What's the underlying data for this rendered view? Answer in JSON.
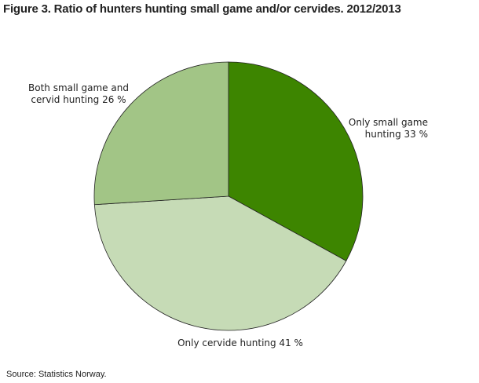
{
  "chart_data": {
    "type": "pie",
    "title": "Figure 3. Ratio of hunters hunting small game and/or cervides. 2012/2013",
    "slices": [
      {
        "label_lines": [
          "Only small game",
          "hunting 33 %"
        ],
        "value": 33,
        "color": "#3d8500"
      },
      {
        "label_lines": [
          "Only cervide hunting 41 %"
        ],
        "value": 41,
        "color": "#c6dbb6"
      },
      {
        "label_lines": [
          "Both small game and",
          "cervid hunting 26 %"
        ],
        "value": 26,
        "color": "#a2c586"
      }
    ],
    "start_angle": "top, clockwise",
    "source": "Source: Statistics Norway."
  }
}
